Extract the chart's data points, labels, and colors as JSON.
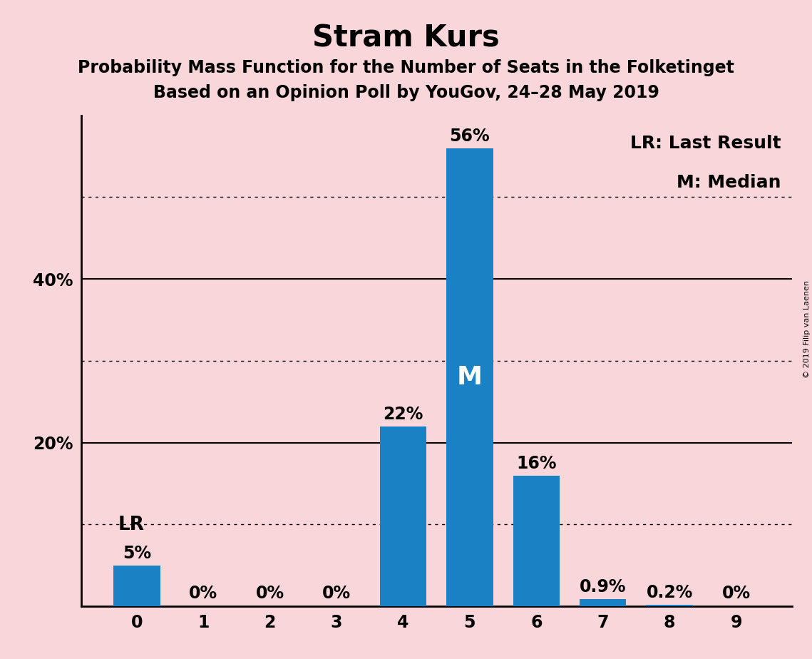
{
  "title": "Stram Kurs",
  "subtitle1": "Probability Mass Function for the Number of Seats in the Folketinget",
  "subtitle2": "Based on an Opinion Poll by YouGov, 24–28 May 2019",
  "categories": [
    0,
    1,
    2,
    3,
    4,
    5,
    6,
    7,
    8,
    9
  ],
  "values": [
    5,
    0,
    0,
    0,
    22,
    56,
    16,
    0.9,
    0.2,
    0
  ],
  "bar_labels": [
    "5%",
    "0%",
    "0%",
    "0%",
    "22%",
    "56%",
    "16%",
    "0.9%",
    "0.2%",
    "0%"
  ],
  "bar_color": "#1a82c4",
  "background_color": "#f9d6d9",
  "ylim": [
    0,
    60
  ],
  "ytick_labeled": [
    20,
    40
  ],
  "ytick_labeled_labels": [
    "20%",
    "40%"
  ],
  "dotted_lines": [
    10,
    30,
    50
  ],
  "solid_lines": [
    20,
    40
  ],
  "lr_bar_index": 0,
  "median_bar_index": 5,
  "legend_text1": "LR: Last Result",
  "legend_text2": "M: Median",
  "copyright_text": "© 2019 Filip van Laenen",
  "title_fontsize": 30,
  "subtitle_fontsize": 17,
  "tick_fontsize": 17,
  "legend_fontsize": 18,
  "bar_label_fontsize": 17,
  "median_label_fontsize": 26,
  "lr_label_fontsize": 19
}
